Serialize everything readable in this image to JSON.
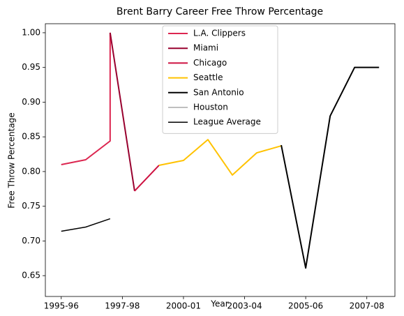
{
  "chart_data": {
    "type": "line",
    "title": "Brent Barry Career Free Throw Percentage",
    "xlabel": "Year",
    "ylabel": "Free Throw Percentage",
    "xlim": [
      -0.65,
      13.65
    ],
    "xticks": [
      {
        "value": 0,
        "label": "1995-96"
      },
      {
        "value": 2.5,
        "label": "1997-98"
      },
      {
        "value": 5,
        "label": "2000-01"
      },
      {
        "value": 7.5,
        "label": "2003-04"
      },
      {
        "value": 10,
        "label": "2005-06"
      },
      {
        "value": 12.5,
        "label": "2007-08"
      }
    ],
    "ylim": [
      0.62,
      1.013
    ],
    "yticks": [
      0.65,
      {
        "value": 0.7,
        "label": "0.70"
      },
      0.75,
      {
        "value": 0.8,
        "label": "0.80"
      },
      0.85,
      {
        "value": 0.9,
        "label": "0.90"
      },
      0.95,
      {
        "value": 1.0,
        "label": "1.00"
      }
    ],
    "legend": "upper center",
    "series": [
      {
        "name": "L.A. Clippers",
        "color": "#dc2650",
        "linewidth": 2,
        "x": [
          0,
          1,
          2,
          2
        ],
        "values": [
          0.81,
          0.817,
          0.844,
          1.0
        ]
      },
      {
        "name": "Miami",
        "color": "#98002e",
        "linewidth": 2,
        "x": [
          2,
          3
        ],
        "values": [
          1.0,
          0.772
        ]
      },
      {
        "name": "Chicago",
        "color": "#ce1141",
        "linewidth": 2,
        "x": [
          3,
          4
        ],
        "values": [
          0.772,
          0.809
        ]
      },
      {
        "name": "Seattle",
        "color": "#ffc200",
        "linewidth": 2,
        "x": [
          4,
          5,
          6,
          7,
          8,
          9
        ],
        "values": [
          0.809,
          0.816,
          0.846,
          0.795,
          0.827,
          0.837
        ]
      },
      {
        "name": "San Antonio",
        "color": "#000000",
        "linewidth": 2,
        "x": [
          9,
          10,
          11,
          12,
          13
        ],
        "values": [
          0.838,
          0.661,
          0.88,
          0.95,
          0.95
        ]
      },
      {
        "name": "Houston",
        "color": "#bfbfbf",
        "linewidth": 2,
        "x": [],
        "values": []
      },
      {
        "name": "League Average",
        "color": "#000000",
        "linewidth": 1.5,
        "x": [
          0,
          1,
          2
        ],
        "values": [
          0.714,
          0.72,
          0.732
        ]
      }
    ]
  }
}
